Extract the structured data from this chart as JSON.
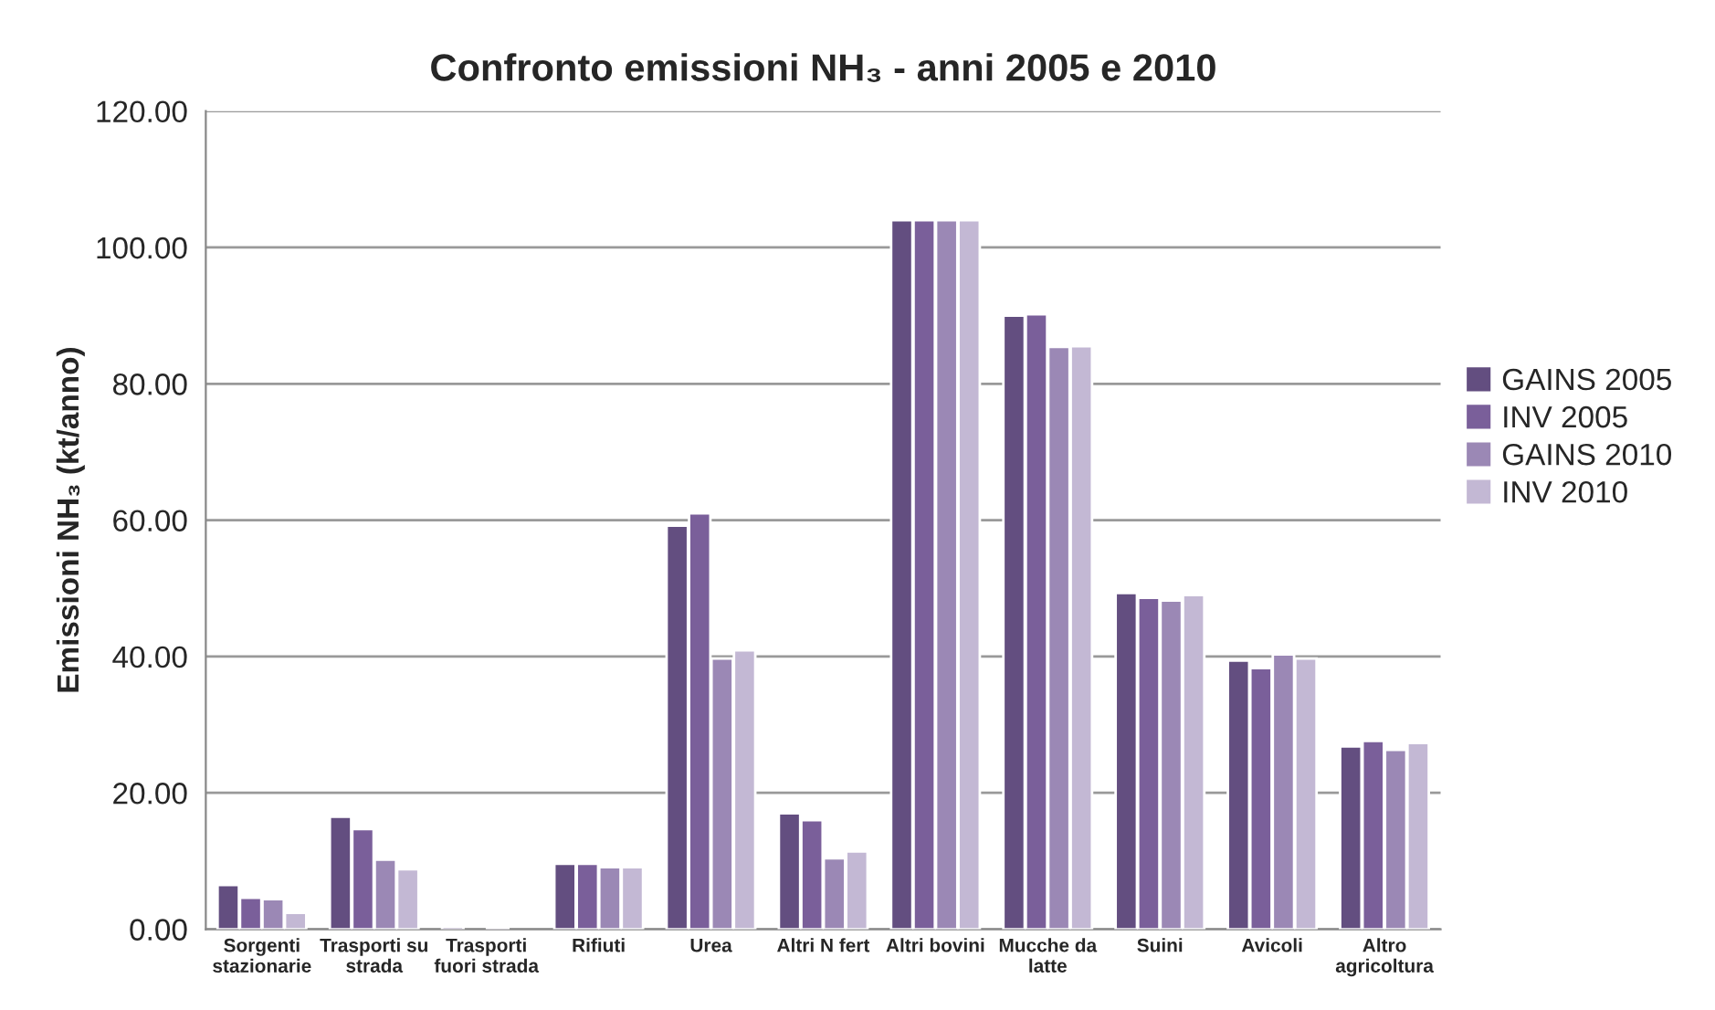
{
  "chart_data": {
    "type": "bar",
    "title": "Confronto emissioni NH₃ - anni 2005 e 2010",
    "ylabel": "Emissioni NH₃ (kt/anno)",
    "categories": [
      "Sorgenti\nstazionarie",
      "Trasporti su\nstrada",
      "Trasporti\nfuori strada",
      "Rifiuti",
      "Urea",
      "Altri N fert",
      "Altri bovini",
      "Mucche da\nlatte",
      "Suini",
      "Avicoli",
      "Altro\nagricoltura"
    ],
    "series": [
      {
        "name": "GAINS 2005",
        "color": "#634e80",
        "values": [
          6.5,
          16.5,
          0.4,
          9.6,
          59.2,
          17.0,
          104.0,
          90.0,
          49.3,
          39.4,
          26.8
        ]
      },
      {
        "name": "INV 2005",
        "color": "#7a5f9a",
        "values": [
          4.6,
          14.7,
          null,
          9.6,
          61.0,
          16.0,
          104.0,
          90.2,
          48.6,
          38.3,
          27.6
        ]
      },
      {
        "name": "GAINS 2010",
        "color": "#9b88b5",
        "values": [
          4.4,
          10.2,
          0.3,
          9.1,
          39.7,
          10.4,
          104.0,
          85.4,
          48.2,
          40.3,
          26.3
        ]
      },
      {
        "name": "INV 2010",
        "color": "#c3b8d4",
        "values": [
          2.4,
          8.8,
          null,
          9.1,
          40.9,
          11.4,
          104.0,
          85.5,
          49.0,
          39.7,
          27.3
        ]
      }
    ],
    "ylim": [
      0,
      120
    ],
    "yticks": [
      {
        "value": 0,
        "label": "0.00"
      },
      {
        "value": 20,
        "label": "20.00"
      },
      {
        "value": 40,
        "label": "40.00"
      },
      {
        "value": 60,
        "label": "60.00"
      },
      {
        "value": 80,
        "label": "80.00"
      },
      {
        "value": 100,
        "label": "100.00"
      },
      {
        "value": 120,
        "label": "120.00"
      }
    ],
    "grid": "y",
    "legend": "right"
  }
}
